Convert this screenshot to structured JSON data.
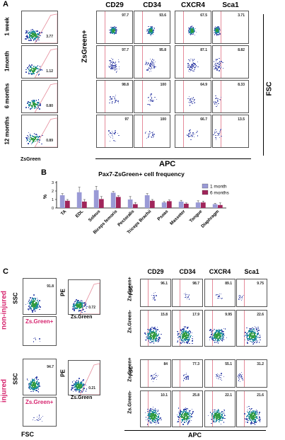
{
  "panel_a": {
    "label": "A",
    "columns": [
      "CD29",
      "CD34",
      "CXCR4",
      "Sca1"
    ],
    "rows": [
      {
        "time": "1 week",
        "ungated": "3.77",
        "values": [
          "97.7",
          "93.6",
          "67.5",
          "3.71"
        ]
      },
      {
        "time": "1month",
        "ungated": "1.12",
        "values": [
          "97.7",
          "95.8",
          "87.1",
          "8.82"
        ]
      },
      {
        "time": "6 months",
        "ungated": "0.80",
        "values": [
          "98.8",
          "100",
          "64.9",
          "8.33"
        ]
      },
      {
        "time": "12 months",
        "ungated": "0.89",
        "values": [
          "97",
          "100",
          "66.7",
          "13.5"
        ]
      }
    ],
    "x_axis_left": "ZsGreen",
    "x_axis_right": "APC",
    "y_axis_left": "ZsGreen+",
    "y_axis_right": "FSC"
  },
  "panel_b": {
    "label": "B",
    "chart_data": {
      "type": "bar",
      "title": "Pax7-ZsGreen+ cell frequency",
      "ylabel": "%",
      "xlabel": "",
      "ylim": [
        0,
        3
      ],
      "yticks": [
        "0",
        "1",
        "2",
        "3"
      ],
      "categories": [
        "TA",
        "EDL",
        "Soleus",
        "Biceps femoris",
        "Pectoralis",
        "Triceps Brachii",
        "Psoas",
        "Masseter",
        "Tongue",
        "Diaphragm"
      ],
      "series": [
        {
          "name": "1 month",
          "color": "#9a9ad6",
          "values": [
            1.5,
            1.85,
            2.1,
            1.8,
            1.0,
            1.5,
            0.65,
            0.75,
            0.65,
            0.45
          ],
          "errors": [
            0.2,
            0.6,
            0.45,
            0.15,
            0.35,
            0.2,
            0.1,
            0.15,
            0.2,
            0.1
          ]
        },
        {
          "name": "6 months",
          "color": "#a0255a",
          "values": [
            0.85,
            0.75,
            1.05,
            1.3,
            0.45,
            0.85,
            0.8,
            0.5,
            0.65,
            0.35
          ],
          "errors": [
            0.15,
            0.25,
            0.3,
            0.15,
            0.2,
            0.15,
            0.15,
            0.1,
            0.15,
            0.25
          ]
        }
      ],
      "legend": "top-right"
    }
  },
  "panel_c": {
    "label": "C",
    "columns": [
      "CD29",
      "CD34",
      "CXCR4",
      "Sca1"
    ],
    "conditions": [
      {
        "name": "non-injured",
        "ssc_gate": "91.8",
        "pe_gate": "0.72",
        "zs_label": "Zs.Green+",
        "pos_values": [
          "96.1",
          "98.7",
          "89.1",
          "9.75"
        ],
        "neg_values": [
          "15.8",
          "17.9",
          "9.95",
          "22.6"
        ]
      },
      {
        "name": "injured",
        "ssc_gate": "94.7",
        "pe_gate": "0.21",
        "zs_label": "Zs.Green+",
        "pos_values": [
          "84",
          "77.3",
          "55.1",
          "31.2"
        ],
        "neg_values": [
          "10.1",
          "25.8",
          "22.1",
          "21.6"
        ]
      }
    ],
    "row_pos": "Zs.Green+",
    "row_neg": "Zs.Green-",
    "ssc": "SSC",
    "pe": "PE",
    "fsc": "FSC",
    "fsc_small": "FSC",
    "zsgreen_axis": "Zs.Green",
    "apc": "APC",
    "condition_color": "#d6246e"
  }
}
